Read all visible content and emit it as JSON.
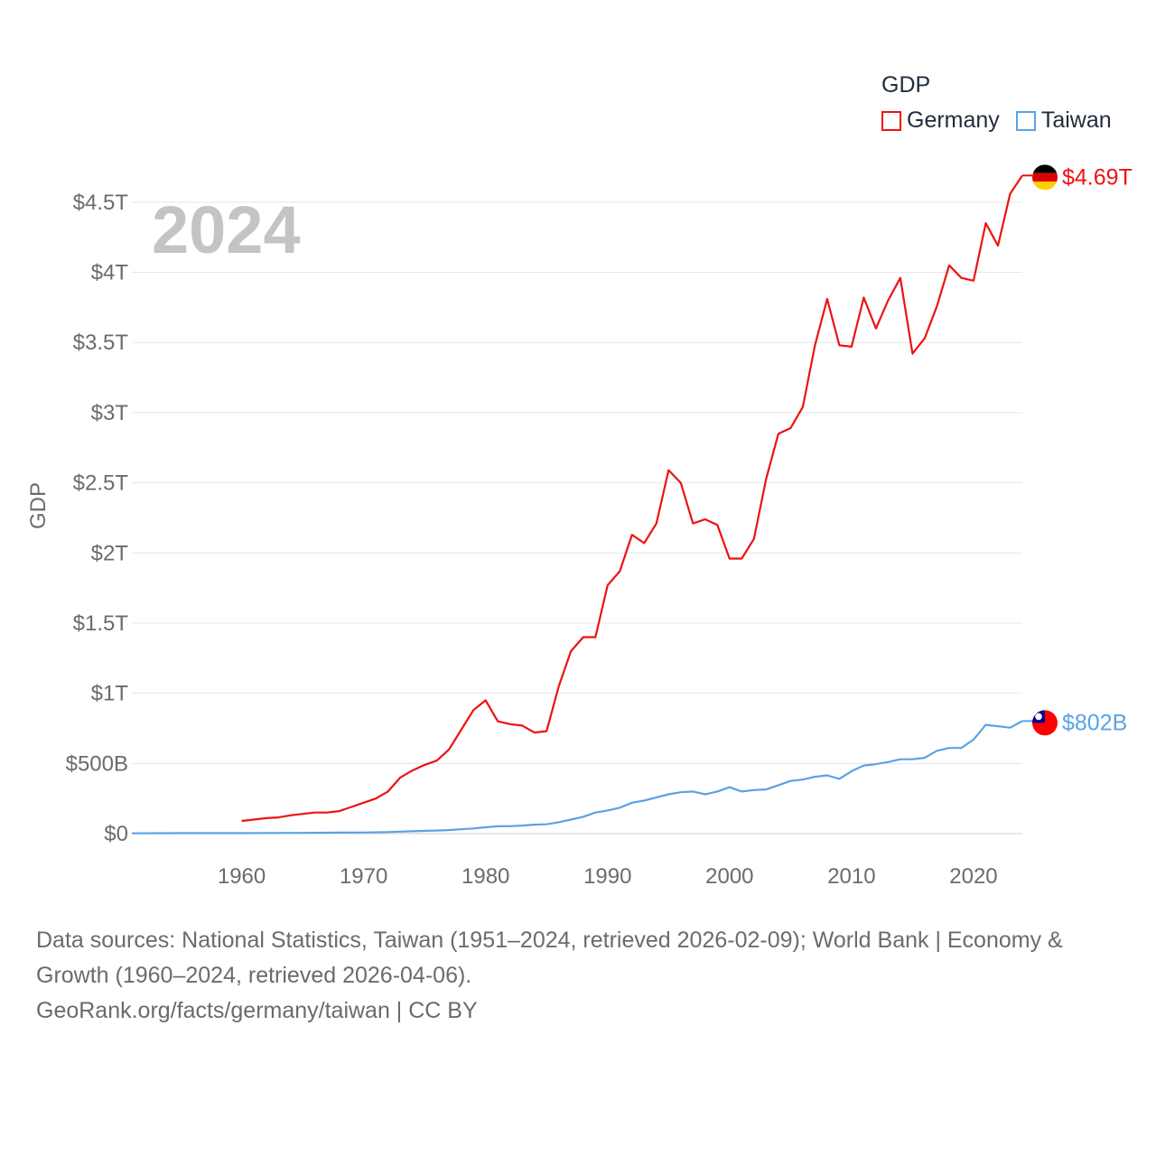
{
  "chart_data": {
    "type": "line",
    "title": "GDP",
    "year_label": "2024",
    "ylabel": "GDP",
    "xlabel": "",
    "xlim": [
      1951,
      2024
    ],
    "ylim": [
      0,
      4.75
    ],
    "y_unit": "trillion USD",
    "yticks": [
      {
        "value": 0,
        "label": "$0"
      },
      {
        "value": 0.5,
        "label": "$500B"
      },
      {
        "value": 1,
        "label": "$1T"
      },
      {
        "value": 1.5,
        "label": "$1.5T"
      },
      {
        "value": 2,
        "label": "$2T"
      },
      {
        "value": 2.5,
        "label": "$2.5T"
      },
      {
        "value": 3,
        "label": "$3T"
      },
      {
        "value": 3.5,
        "label": "$3.5T"
      },
      {
        "value": 4,
        "label": "$4T"
      },
      {
        "value": 4.5,
        "label": "$4.5T"
      }
    ],
    "xticks": [
      {
        "value": 1960,
        "label": "1960"
      },
      {
        "value": 1970,
        "label": "1970"
      },
      {
        "value": 1980,
        "label": "1980"
      },
      {
        "value": 1990,
        "label": "1990"
      },
      {
        "value": 2000,
        "label": "2000"
      },
      {
        "value": 2010,
        "label": "2010"
      },
      {
        "value": 2020,
        "label": "2020"
      }
    ],
    "series": [
      {
        "name": "Germany",
        "color": "#ee1111",
        "end_label": "$4.69T",
        "flag": "germany-flag",
        "points": [
          [
            1960,
            0.09
          ],
          [
            1961,
            0.1
          ],
          [
            1962,
            0.11
          ],
          [
            1963,
            0.115
          ],
          [
            1964,
            0.13
          ],
          [
            1965,
            0.14
          ],
          [
            1966,
            0.15
          ],
          [
            1967,
            0.15
          ],
          [
            1968,
            0.16
          ],
          [
            1969,
            0.19
          ],
          [
            1970,
            0.22
          ],
          [
            1971,
            0.25
          ],
          [
            1972,
            0.3
          ],
          [
            1973,
            0.4
          ],
          [
            1974,
            0.45
          ],
          [
            1975,
            0.49
          ],
          [
            1976,
            0.52
          ],
          [
            1977,
            0.6
          ],
          [
            1978,
            0.74
          ],
          [
            1979,
            0.88
          ],
          [
            1980,
            0.95
          ],
          [
            1981,
            0.8
          ],
          [
            1982,
            0.78
          ],
          [
            1983,
            0.77
          ],
          [
            1984,
            0.72
          ],
          [
            1985,
            0.73
          ],
          [
            1986,
            1.05
          ],
          [
            1987,
            1.3
          ],
          [
            1988,
            1.4
          ],
          [
            1989,
            1.4
          ],
          [
            1990,
            1.77
          ],
          [
            1991,
            1.87
          ],
          [
            1992,
            2.13
          ],
          [
            1993,
            2.07
          ],
          [
            1994,
            2.21
          ],
          [
            1995,
            2.59
          ],
          [
            1996,
            2.5
          ],
          [
            1997,
            2.21
          ],
          [
            1998,
            2.24
          ],
          [
            1999,
            2.2
          ],
          [
            2000,
            1.96
          ],
          [
            2001,
            1.96
          ],
          [
            2002,
            2.1
          ],
          [
            2003,
            2.53
          ],
          [
            2004,
            2.85
          ],
          [
            2005,
            2.89
          ],
          [
            2006,
            3.04
          ],
          [
            2007,
            3.48
          ],
          [
            2008,
            3.81
          ],
          [
            2009,
            3.48
          ],
          [
            2010,
            3.47
          ],
          [
            2011,
            3.82
          ],
          [
            2012,
            3.6
          ],
          [
            2013,
            3.8
          ],
          [
            2014,
            3.96
          ],
          [
            2015,
            3.42
          ],
          [
            2016,
            3.53
          ],
          [
            2017,
            3.76
          ],
          [
            2018,
            4.05
          ],
          [
            2019,
            3.96
          ],
          [
            2020,
            3.94
          ],
          [
            2021,
            4.35
          ],
          [
            2022,
            4.19
          ],
          [
            2023,
            4.56
          ],
          [
            2024,
            4.69
          ]
        ]
      },
      {
        "name": "Taiwan",
        "color": "#5aa2e6",
        "end_label": "$802B",
        "flag": "taiwan-flag",
        "points": [
          [
            1951,
            0.002
          ],
          [
            1955,
            0.003
          ],
          [
            1960,
            0.003
          ],
          [
            1965,
            0.005
          ],
          [
            1968,
            0.007
          ],
          [
            1970,
            0.0075
          ],
          [
            1972,
            0.011
          ],
          [
            1974,
            0.017
          ],
          [
            1976,
            0.022
          ],
          [
            1977,
            0.025
          ],
          [
            1978,
            0.031
          ],
          [
            1979,
            0.037
          ],
          [
            1980,
            0.045
          ],
          [
            1981,
            0.052
          ],
          [
            1982,
            0.053
          ],
          [
            1983,
            0.057
          ],
          [
            1984,
            0.064
          ],
          [
            1985,
            0.066
          ],
          [
            1986,
            0.081
          ],
          [
            1987,
            0.1
          ],
          [
            1988,
            0.12
          ],
          [
            1989,
            0.15
          ],
          [
            1990,
            0.165
          ],
          [
            1991,
            0.185
          ],
          [
            1992,
            0.22
          ],
          [
            1993,
            0.235
          ],
          [
            1994,
            0.258
          ],
          [
            1995,
            0.28
          ],
          [
            1996,
            0.295
          ],
          [
            1997,
            0.3
          ],
          [
            1998,
            0.28
          ],
          [
            1999,
            0.3
          ],
          [
            2000,
            0.33
          ],
          [
            2001,
            0.3
          ],
          [
            2002,
            0.31
          ],
          [
            2003,
            0.315
          ],
          [
            2004,
            0.345
          ],
          [
            2005,
            0.375
          ],
          [
            2006,
            0.385
          ],
          [
            2007,
            0.405
          ],
          [
            2008,
            0.415
          ],
          [
            2009,
            0.39
          ],
          [
            2010,
            0.445
          ],
          [
            2011,
            0.485
          ],
          [
            2012,
            0.495
          ],
          [
            2013,
            0.51
          ],
          [
            2014,
            0.53
          ],
          [
            2015,
            0.53
          ],
          [
            2016,
            0.54
          ],
          [
            2017,
            0.59
          ],
          [
            2018,
            0.61
          ],
          [
            2019,
            0.61
          ],
          [
            2020,
            0.67
          ],
          [
            2021,
            0.775
          ],
          [
            2022,
            0.765
          ],
          [
            2023,
            0.755
          ],
          [
            2024,
            0.802
          ]
        ]
      }
    ],
    "legend_position": "top-right",
    "grid": true
  },
  "footer": {
    "sources": "Data sources: National Statistics, Taiwan (1951–2024, retrieved 2026-02-09); World Bank | Economy & Growth (1960–2024, retrieved 2026-04-06).",
    "credit": "GeoRank.org/facts/germany/taiwan | CC BY"
  }
}
